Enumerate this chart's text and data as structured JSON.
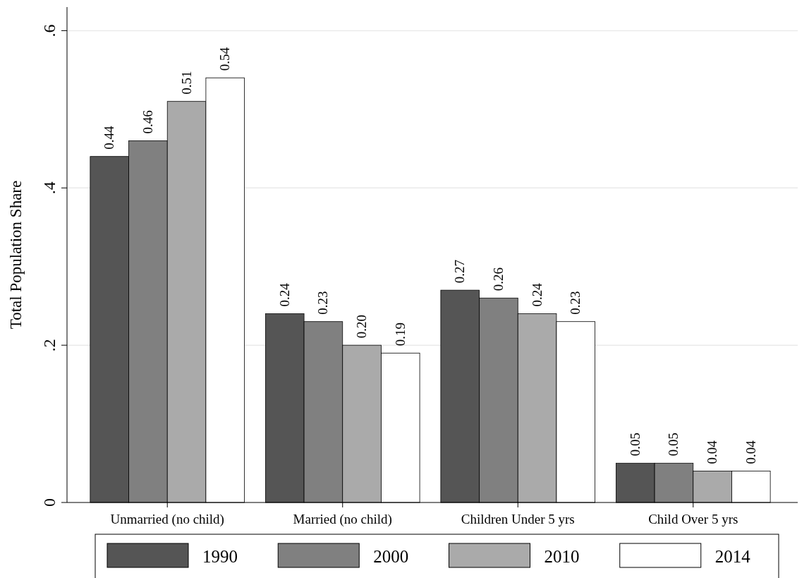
{
  "chart_data": {
    "type": "bar",
    "ylabel": "Total Population Share",
    "categories": [
      "Unmarried (no child)",
      "Married (no child)",
      "Children Under 5 yrs",
      "Child Over 5 yrs"
    ],
    "series": [
      {
        "name": "1990",
        "color": "#555555",
        "values": [
          0.44,
          0.24,
          0.27,
          0.05
        ],
        "value_labels": [
          "0.44",
          "0.24",
          "0.27",
          "0.05"
        ]
      },
      {
        "name": "2000",
        "color": "#808080",
        "values": [
          0.46,
          0.23,
          0.26,
          0.05
        ],
        "value_labels": [
          "0.46",
          "0.23",
          "0.26",
          "0.05"
        ]
      },
      {
        "name": "2010",
        "color": "#aaaaaa",
        "values": [
          0.51,
          0.2,
          0.24,
          0.04
        ],
        "value_labels": [
          "0.51",
          "0.20",
          "0.24",
          "0.04"
        ]
      },
      {
        "name": "2014",
        "color": "#ffffff",
        "values": [
          0.54,
          0.19,
          0.23,
          0.04
        ],
        "value_labels": [
          "0.54",
          "0.19",
          "0.23",
          "0.04"
        ]
      }
    ],
    "ylim": [
      0,
      0.63
    ],
    "yticks": [
      0,
      {
        "value": 0.2,
        "label": ".2"
      },
      {
        "value": 0.4,
        "label": ".4"
      },
      {
        "value": 0.6,
        "label": ".6"
      }
    ],
    "grid": "y",
    "legend": "bottom"
  }
}
